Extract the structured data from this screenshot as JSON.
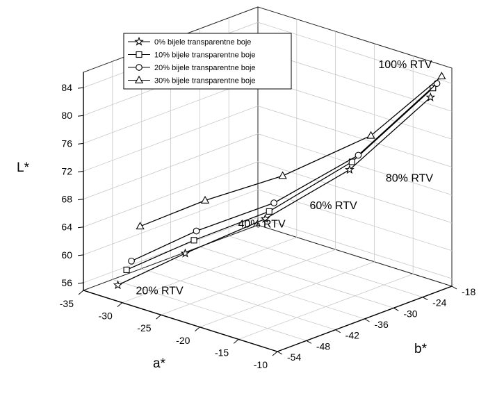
{
  "chart_data": {
    "type": "line",
    "title": "",
    "zlabel": "L*",
    "xlabel": "a*",
    "ylabel": "b*",
    "grid": true,
    "legend_position": "top-left",
    "z_ticks": [
      "56",
      "60",
      "64",
      "68",
      "72",
      "76",
      "80",
      "84"
    ],
    "a_ticks": [
      "-35",
      "-30",
      "-25",
      "-20",
      "-15",
      "-10"
    ],
    "b_ticks": [
      "-18",
      "-24",
      "-30",
      "-36",
      "-42",
      "-48",
      "-54"
    ],
    "annotations": [
      "20% RTV",
      "40% RTV",
      "60% RTV",
      "80% RTV",
      "100% RTV"
    ],
    "x": [
      "20% RTV",
      "40% RTV",
      "60% RTV",
      "80% RTV",
      "100% RTV"
    ],
    "series": [
      {
        "name": "0% bijele transparentne boje",
        "marker": "star",
        "a": [
          -31.5,
          -27.5,
          -22.5,
          -16,
          -11.5
        ],
        "b": [
          -52.5,
          -45,
          -36.5,
          -29.5,
          -20
        ],
        "L": [
          56.5,
          60.5,
          65.0,
          72.5,
          82.0
        ]
      },
      {
        "name": "10% bijele transparentne boje",
        "marker": "square",
        "a": [
          -31,
          -27,
          -22.3,
          -16,
          -11.5
        ],
        "b": [
          -51.5,
          -44,
          -36,
          -29,
          -19.5
        ],
        "L": [
          58.6,
          62.3,
          66.0,
          73.5,
          83.2
        ]
      },
      {
        "name": "20% bijele transparentne boje",
        "marker": "circle",
        "a": [
          -31,
          -27,
          -22,
          -15.5,
          -11.3
        ],
        "b": [
          -50.5,
          -43.5,
          -35.5,
          -28.5,
          -19
        ],
        "L": [
          59.6,
          63.5,
          67.2,
          74.5,
          83.8
        ]
      },
      {
        "name": "30% bijele transparentne boje",
        "marker": "triangle",
        "a": [
          -30.5,
          -26.5,
          -21.5,
          -14.5,
          -11
        ],
        "b": [
          -49.5,
          -42.5,
          -34.5,
          -27.5,
          -18.5
        ],
        "L": [
          64.5,
          67.8,
          71.0,
          77.4,
          84.8
        ]
      }
    ]
  }
}
